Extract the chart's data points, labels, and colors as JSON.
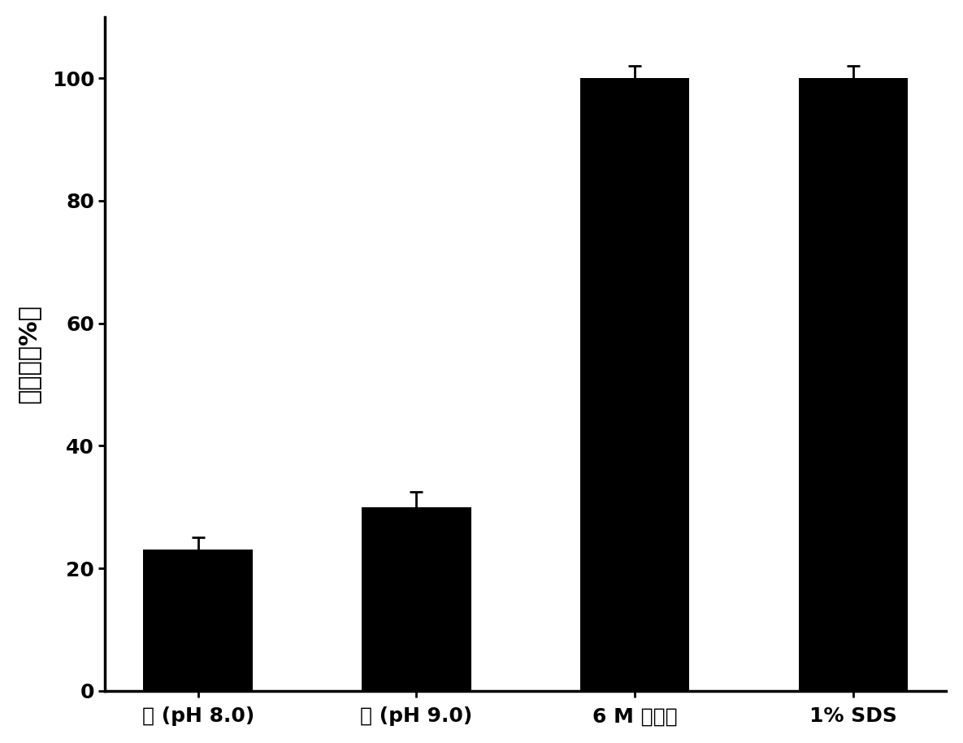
{
  "categories": [
    "尿 (pH 8.0)",
    "尿 (pH 9.0)",
    "6 M 盐酸胍",
    "1% SDS"
  ],
  "values": [
    23,
    30,
    100,
    100
  ],
  "errors": [
    2,
    2.5,
    2,
    2
  ],
  "bar_color": "#000000",
  "ylabel": "溶解度（%）",
  "ylim": [
    0,
    110
  ],
  "yticks": [
    0,
    20,
    40,
    60,
    80,
    100
  ],
  "bar_width": 0.5,
  "background_color": "#ffffff",
  "figure_width": 11.85,
  "figure_height": 9.14,
  "dpi": 100,
  "tick_fontsize": 18,
  "ylabel_fontsize": 22,
  "xlabel_fontsize": 18,
  "error_capsize": 6,
  "error_linewidth": 2,
  "spine_linewidth": 2.5
}
